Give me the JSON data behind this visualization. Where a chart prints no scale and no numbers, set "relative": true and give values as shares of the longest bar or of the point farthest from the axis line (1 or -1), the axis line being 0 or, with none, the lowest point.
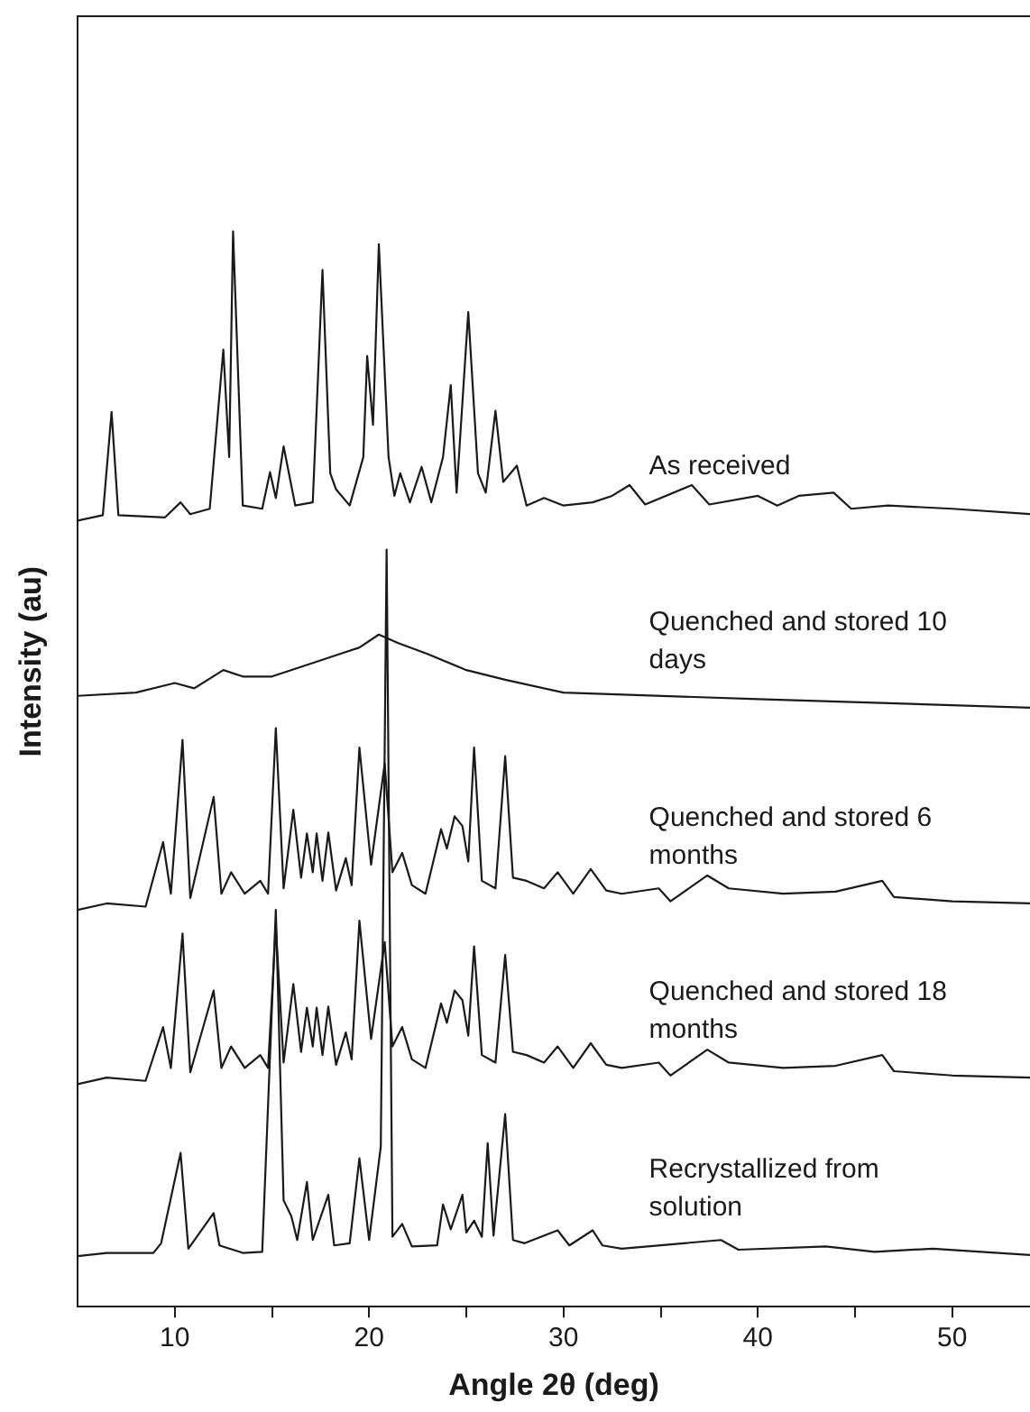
{
  "chart_data": {
    "type": "line",
    "relative": true,
    "xlabel": "Angle 2θ (deg)",
    "ylabel": "Intensity (au)",
    "xlim": [
      5,
      54
    ],
    "xticks": [
      10,
      {
        "value": 15,
        "label": null
      },
      20,
      {
        "value": 25,
        "label": null
      },
      30,
      {
        "value": 35,
        "label": null
      },
      40,
      {
        "value": 45,
        "label": null
      },
      50
    ],
    "grid": false,
    "legend": false,
    "marker": "none",
    "line_style": "solid",
    "series": [
      {
        "name": "As received",
        "color": "#1a1a1a",
        "x": [
          5,
          6.3,
          6.75,
          7.1,
          9.5,
          10.3,
          10.8,
          11.8,
          12.5,
          12.8,
          13.0,
          13.5,
          14.5,
          14.9,
          15.2,
          15.6,
          16.2,
          17.1,
          17.6,
          18.0,
          18.3,
          19.0,
          19.7,
          19.9,
          20.2,
          20.5,
          21.0,
          21.3,
          21.6,
          22.1,
          22.7,
          23.2,
          23.8,
          24.2,
          24.5,
          25.1,
          25.6,
          26.0,
          26.5,
          26.9,
          27.6,
          28.1,
          29.0,
          30.0,
          31.5,
          32.5,
          33.4,
          34.2,
          36.6,
          37.5,
          40.0,
          41.0,
          42.1,
          43.9,
          44.8,
          46.7,
          50,
          54
        ],
        "values": [
          0.731,
          0.736,
          0.832,
          0.736,
          0.734,
          0.748,
          0.737,
          0.742,
          0.89,
          0.79,
          1.0,
          0.745,
          0.742,
          0.776,
          0.752,
          0.8,
          0.745,
          0.748,
          0.964,
          0.775,
          0.76,
          0.745,
          0.79,
          0.884,
          0.82,
          0.988,
          0.79,
          0.754,
          0.775,
          0.748,
          0.781,
          0.748,
          0.79,
          0.857,
          0.757,
          0.925,
          0.775,
          0.757,
          0.833,
          0.767,
          0.782,
          0.745,
          0.752,
          0.745,
          0.748,
          0.754,
          0.764,
          0.746,
          0.764,
          0.746,
          0.754,
          0.745,
          0.754,
          0.757,
          0.742,
          0.745,
          0.742,
          0.737
        ]
      },
      {
        "name": "Quenched and stored 10 days",
        "color": "#1a1a1a",
        "x": [
          5,
          8,
          10,
          11,
          12.5,
          13.5,
          15,
          17,
          18.5,
          19.5,
          20.5,
          21.5,
          23,
          25,
          27,
          30,
          40,
          54
        ],
        "values": [
          0.568,
          0.571,
          0.58,
          0.575,
          0.592,
          0.586,
          0.586,
          0.598,
          0.607,
          0.613,
          0.625,
          0.617,
          0.607,
          0.592,
          0.583,
          0.571,
          0.565,
          0.557
        ]
      },
      {
        "name": "Quenched and stored 6 months",
        "color": "#1a1a1a",
        "x": [
          5,
          6.5,
          8.5,
          9.4,
          9.8,
          10.4,
          10.8,
          12.0,
          12.4,
          12.9,
          13.6,
          14.4,
          14.8,
          15.2,
          15.6,
          16.1,
          16.5,
          16.8,
          17.1,
          17.3,
          17.6,
          17.9,
          18.3,
          18.8,
          19.1,
          19.5,
          20.1,
          20.8,
          21.2,
          21.7,
          22.2,
          22.9,
          23.7,
          24.0,
          24.4,
          24.8,
          25.1,
          25.4,
          25.8,
          26.5,
          27.0,
          27.4,
          28.1,
          29.0,
          29.7,
          30.5,
          31.4,
          32.2,
          33.0,
          34.9,
          35.5,
          37.4,
          38.5,
          41.3,
          44.0,
          46.4,
          47.0,
          50,
          54
        ],
        "values": [
          0.369,
          0.375,
          0.372,
          0.432,
          0.384,
          0.527,
          0.38,
          0.474,
          0.384,
          0.404,
          0.384,
          0.396,
          0.384,
          0.538,
          0.389,
          0.462,
          0.399,
          0.44,
          0.404,
          0.44,
          0.396,
          0.441,
          0.387,
          0.417,
          0.392,
          0.52,
          0.411,
          0.505,
          0.404,
          0.422,
          0.392,
          0.384,
          0.444,
          0.426,
          0.456,
          0.447,
          0.414,
          0.52,
          0.396,
          0.389,
          0.512,
          0.399,
          0.396,
          0.389,
          0.404,
          0.384,
          0.407,
          0.387,
          0.384,
          0.389,
          0.377,
          0.401,
          0.389,
          0.384,
          0.386,
          0.396,
          0.381,
          0.377,
          0.375
        ]
      },
      {
        "name": "Quenched and stored 18 months",
        "color": "#1a1a1a",
        "x": [
          5,
          6.5,
          8.5,
          9.4,
          9.8,
          10.4,
          10.8,
          12.0,
          12.4,
          12.9,
          13.6,
          14.4,
          14.8,
          15.2,
          15.6,
          16.1,
          16.5,
          16.8,
          17.1,
          17.3,
          17.6,
          17.9,
          18.3,
          18.8,
          19.1,
          19.5,
          20.1,
          20.8,
          21.2,
          21.7,
          22.2,
          22.9,
          23.7,
          24.0,
          24.4,
          24.8,
          25.1,
          25.4,
          25.8,
          26.5,
          27.0,
          27.4,
          28.1,
          29.0,
          29.7,
          30.5,
          31.4,
          32.2,
          33.0,
          34.9,
          35.5,
          37.4,
          38.5,
          41.3,
          44.0,
          46.4,
          47.0,
          50,
          54
        ],
        "values": [
          0.207,
          0.213,
          0.21,
          0.26,
          0.222,
          0.347,
          0.218,
          0.294,
          0.222,
          0.242,
          0.222,
          0.234,
          0.222,
          0.354,
          0.227,
          0.3,
          0.237,
          0.278,
          0.242,
          0.278,
          0.234,
          0.279,
          0.225,
          0.255,
          0.23,
          0.359,
          0.249,
          0.339,
          0.242,
          0.26,
          0.23,
          0.222,
          0.282,
          0.264,
          0.294,
          0.285,
          0.252,
          0.335,
          0.234,
          0.227,
          0.327,
          0.237,
          0.234,
          0.227,
          0.242,
          0.222,
          0.245,
          0.225,
          0.222,
          0.227,
          0.215,
          0.239,
          0.227,
          0.222,
          0.224,
          0.234,
          0.219,
          0.215,
          0.213
        ]
      },
      {
        "name": "Recrystallized from solution",
        "color": "#1a1a1a",
        "x": [
          5,
          6.5,
          8.9,
          9.3,
          10.3,
          10.7,
          12.0,
          12.3,
          13.5,
          14.5,
          15.2,
          15.6,
          16.0,
          16.3,
          16.8,
          17.1,
          17.9,
          18.2,
          19.0,
          19.5,
          20.0,
          20.6,
          20.9,
          21.2,
          21.7,
          22.2,
          23.5,
          23.8,
          24.2,
          24.8,
          25.0,
          25.4,
          25.8,
          26.1,
          26.4,
          27.0,
          27.4,
          28,
          29.7,
          30.3,
          31.5,
          32,
          33,
          38.1,
          39,
          43.5,
          46,
          49,
          54
        ],
        "values": [
          0.047,
          0.05,
          0.05,
          0.059,
          0.143,
          0.054,
          0.087,
          0.057,
          0.05,
          0.051,
          0.369,
          0.099,
          0.084,
          0.062,
          0.116,
          0.062,
          0.104,
          0.057,
          0.059,
          0.138,
          0.062,
          0.149,
          0.704,
          0.065,
          0.077,
          0.056,
          0.057,
          0.095,
          0.072,
          0.104,
          0.069,
          0.08,
          0.065,
          0.152,
          0.066,
          0.179,
          0.062,
          0.059,
          0.071,
          0.057,
          0.071,
          0.057,
          0.054,
          0.062,
          0.053,
          0.056,
          0.051,
          0.054,
          0.048
        ]
      }
    ]
  }
}
